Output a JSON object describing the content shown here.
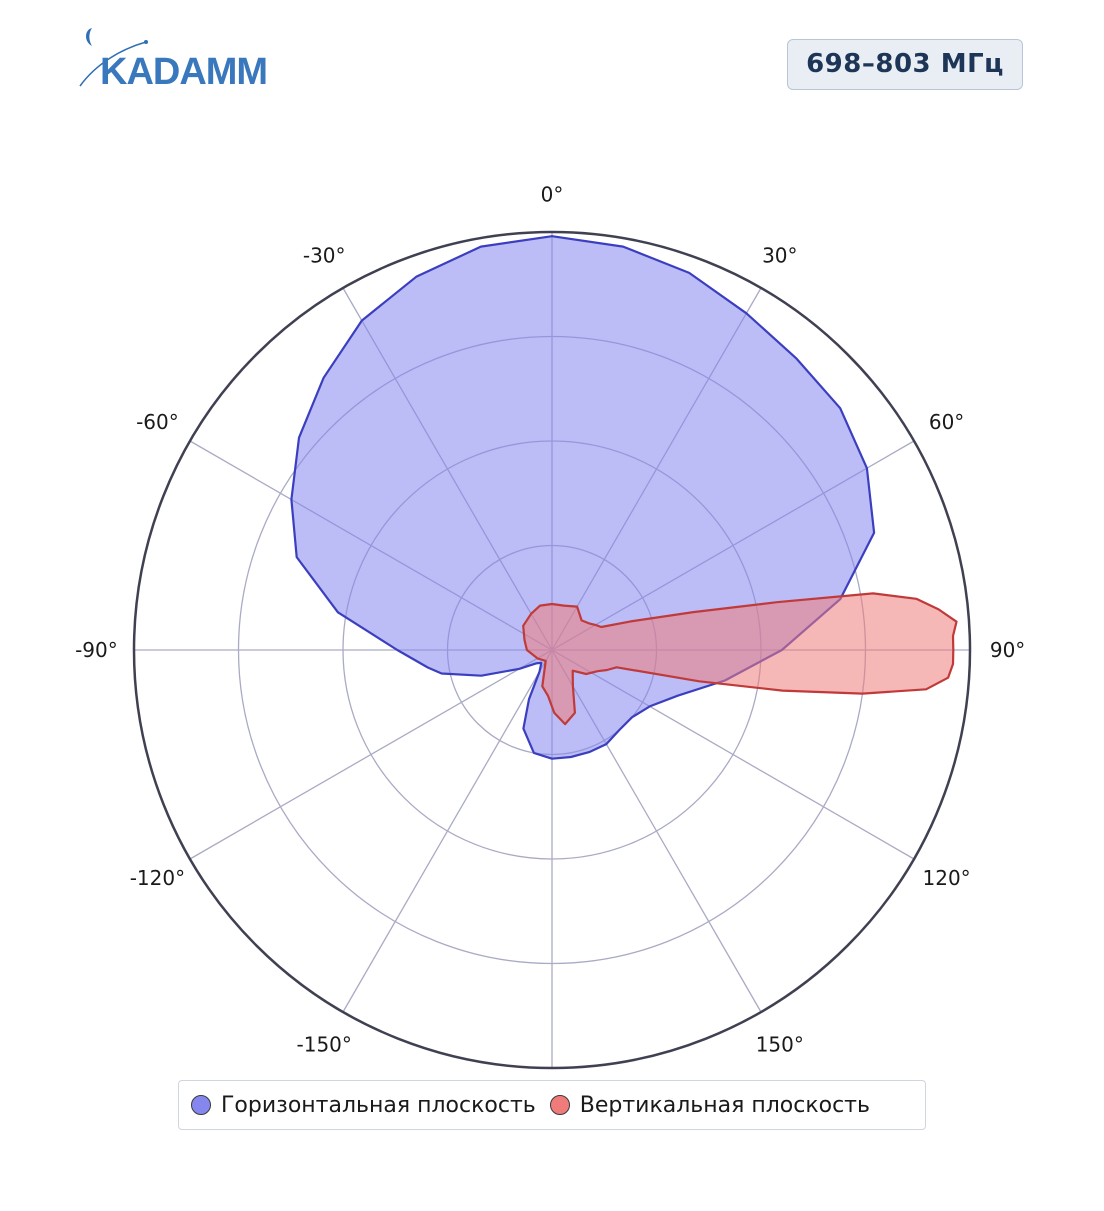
{
  "header": {
    "logo_text": "KADAMM",
    "frequency_label": "698–803 МГц"
  },
  "chart_data": {
    "type": "polar-area",
    "angular_ticks": [
      "0°",
      "30°",
      "60°",
      "90°",
      "120°",
      "150°",
      "-150°",
      "-120°",
      "-90°",
      "-60°",
      "-30°"
    ],
    "angular_direction": "clockwise",
    "zero_position": "top",
    "radial_range": [
      0,
      1
    ],
    "radial_grid_fractions": [
      0.25,
      0.5,
      0.75,
      1.0
    ],
    "grid": true,
    "legend_position": "bottom",
    "series": [
      {
        "name": "Горизонтальная плоскость",
        "color": "#8587ee",
        "line_color": "#3b3fbf",
        "points": [
          [
            0,
            0.99
          ],
          [
            10,
            0.98
          ],
          [
            20,
            0.96
          ],
          [
            30,
            0.93
          ],
          [
            40,
            0.91
          ],
          [
            50,
            0.9
          ],
          [
            60,
            0.87
          ],
          [
            70,
            0.82
          ],
          [
            80,
            0.7
          ],
          [
            90,
            0.55
          ],
          [
            100,
            0.42
          ],
          [
            110,
            0.32
          ],
          [
            120,
            0.27
          ],
          [
            130,
            0.25
          ],
          [
            140,
            0.25
          ],
          [
            150,
            0.26
          ],
          [
            160,
            0.26
          ],
          [
            170,
            0.26
          ],
          [
            180,
            0.26
          ],
          [
            190,
            0.25
          ],
          [
            200,
            0.2
          ],
          [
            205,
            0.13
          ],
          [
            210,
            0.06
          ],
          [
            220,
            0.04
          ],
          [
            230,
            0.05
          ],
          [
            240,
            0.09
          ],
          [
            250,
            0.18
          ],
          [
            258,
            0.27
          ],
          [
            262,
            0.3
          ],
          [
            270,
            0.37
          ],
          [
            280,
            0.52
          ],
          [
            290,
            0.65
          ],
          [
            300,
            0.72
          ],
          [
            310,
            0.79
          ],
          [
            320,
            0.85
          ],
          [
            330,
            0.91
          ],
          [
            340,
            0.95
          ],
          [
            350,
            0.98
          ],
          [
            360,
            0.99
          ]
        ]
      },
      {
        "name": "Вертикальная плоскость",
        "color": "#ef7b7b",
        "line_color": "#c03a3a",
        "points": [
          [
            0,
            0.11
          ],
          [
            15,
            0.11
          ],
          [
            30,
            0.12
          ],
          [
            45,
            0.1
          ],
          [
            55,
            0.11
          ],
          [
            60,
            0.12
          ],
          [
            65,
            0.13
          ],
          [
            70,
            0.2
          ],
          [
            75,
            0.35
          ],
          [
            78,
            0.55
          ],
          [
            80,
            0.78
          ],
          [
            82,
            0.88
          ],
          [
            84,
            0.93
          ],
          [
            86,
            0.97
          ],
          [
            88,
            0.96
          ],
          [
            90,
            0.96
          ],
          [
            92,
            0.96
          ],
          [
            94,
            0.95
          ],
          [
            96,
            0.9
          ],
          [
            98,
            0.75
          ],
          [
            100,
            0.56
          ],
          [
            102,
            0.36
          ],
          [
            105,
            0.16
          ],
          [
            110,
            0.14
          ],
          [
            115,
            0.12
          ],
          [
            125,
            0.1
          ],
          [
            135,
            0.07
          ],
          [
            150,
            0.1
          ],
          [
            160,
            0.16
          ],
          [
            170,
            0.18
          ],
          [
            178,
            0.15
          ],
          [
            185,
            0.11
          ],
          [
            195,
            0.09
          ],
          [
            210,
            0.03
          ],
          [
            240,
            0.04
          ],
          [
            270,
            0.06
          ],
          [
            290,
            0.07
          ],
          [
            310,
            0.09
          ],
          [
            330,
            0.1
          ],
          [
            345,
            0.11
          ],
          [
            360,
            0.11
          ]
        ]
      }
    ]
  }
}
